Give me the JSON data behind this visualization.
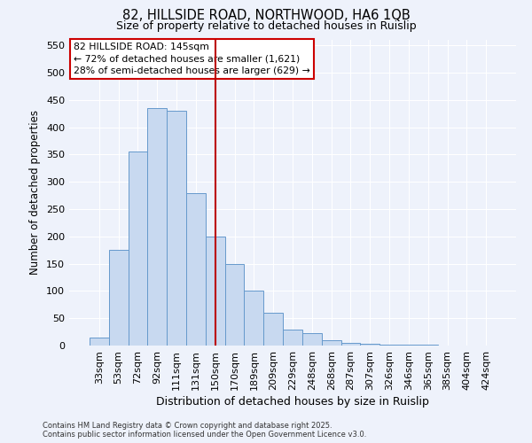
{
  "title": "82, HILLSIDE ROAD, NORTHWOOD, HA6 1QB",
  "subtitle": "Size of property relative to detached houses in Ruislip",
  "xlabel": "Distribution of detached houses by size in Ruislip",
  "ylabel": "Number of detached properties",
  "bar_labels": [
    "33sqm",
    "53sqm",
    "72sqm",
    "92sqm",
    "111sqm",
    "131sqm",
    "150sqm",
    "170sqm",
    "189sqm",
    "209sqm",
    "229sqm",
    "248sqm",
    "268sqm",
    "287sqm",
    "307sqm",
    "326sqm",
    "346sqm",
    "365sqm",
    "385sqm",
    "404sqm",
    "424sqm"
  ],
  "bar_values": [
    15,
    175,
    355,
    435,
    430,
    280,
    200,
    150,
    100,
    60,
    30,
    22,
    10,
    5,
    3,
    2,
    1,
    1,
    0,
    0,
    0
  ],
  "bar_color": "#c8d9f0",
  "bar_edge_color": "#6699cc",
  "vline_x": 6.0,
  "vline_color": "#bb0000",
  "ylim": [
    0,
    560
  ],
  "yticks": [
    0,
    50,
    100,
    150,
    200,
    250,
    300,
    350,
    400,
    450,
    500,
    550
  ],
  "annotation_title": "82 HILLSIDE ROAD: 145sqm",
  "annotation_line1": "← 72% of detached houses are smaller (1,621)",
  "annotation_line2": "28% of semi-detached houses are larger (629) →",
  "annotation_box_color": "#ffffff",
  "annotation_box_edge": "#cc0000",
  "bg_color": "#eef2fb",
  "grid_color": "#ffffff",
  "footer_left": "Contains HM Land Registry data © Crown copyright and database right 2025.\nContains public sector information licensed under the Open Government Licence v3.0."
}
